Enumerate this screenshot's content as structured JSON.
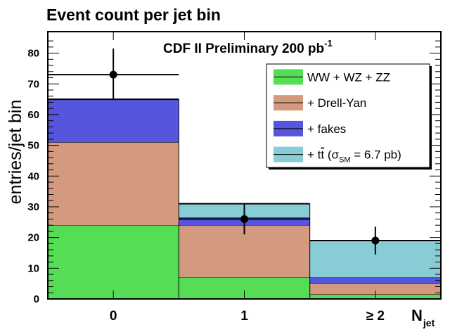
{
  "chart_data": {
    "type": "bar",
    "stacked": true,
    "title": "Event count per jet bin",
    "annotation": "CDF II Preliminary 200 pb",
    "annotation_sup": "-1",
    "ylabel": "entries/jet bin",
    "xlabel": "N",
    "xlabel_sub": "jet",
    "categories": [
      "0",
      "1",
      "≥ 2"
    ],
    "ylim": [
      0,
      87
    ],
    "yticks": [
      0,
      10,
      20,
      30,
      40,
      50,
      60,
      70,
      80
    ],
    "series": [
      {
        "name": "WW + WZ + ZZ",
        "color": "#55dd55",
        "values": [
          24,
          7,
          1.5
        ]
      },
      {
        "name": "+ Drell-Yan",
        "color": "#d49a80",
        "values": [
          27,
          17,
          3.5
        ]
      },
      {
        "name": "+ fakes",
        "color": "#5555dd",
        "values": [
          14,
          2.5,
          2
        ]
      },
      {
        "name": "+ tt̄ (σSM = 6.7 pb)",
        "color": "#88ccd6",
        "values": [
          0,
          4.5,
          12
        ]
      }
    ],
    "data_points": [
      {
        "category": "0",
        "value": 73,
        "err_low": 8,
        "err_high": 8.5
      },
      {
        "category": "1",
        "value": 26,
        "err_low": 5,
        "err_high": 5
      },
      {
        "category": "≥ 2",
        "value": 19,
        "err_low": 4.5,
        "err_high": 4.5
      }
    ],
    "legend": {
      "position": "top-right",
      "entries": [
        {
          "label": "WW + WZ + ZZ",
          "color": "#55dd55"
        },
        {
          "label": "+ Drell-Yan",
          "color": "#d49a80"
        },
        {
          "label": "+ fakes",
          "color": "#5555dd"
        },
        {
          "label_prefix": "+ t",
          "label_tbar": "t",
          "label_paren_open": " (",
          "label_sigma": "σ",
          "label_sub": "SM",
          "label_rest": " = 6.7 pb)",
          "color": "#88ccd6"
        }
      ]
    },
    "grid": false
  }
}
